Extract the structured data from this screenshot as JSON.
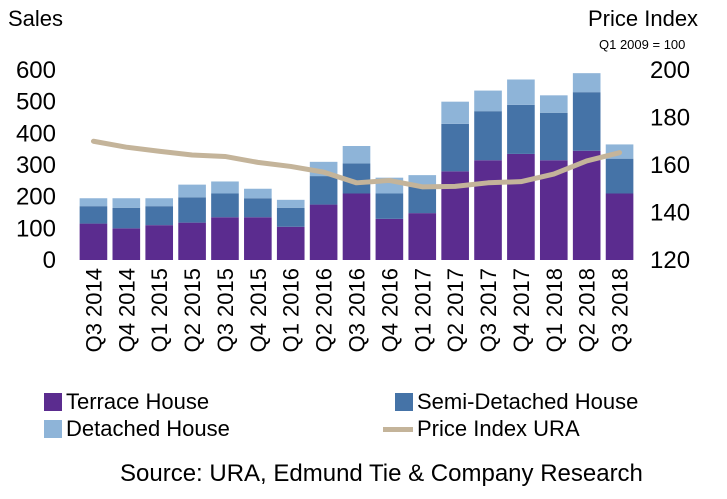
{
  "left_axis_title": "Sales",
  "right_axis_title": "Price Index",
  "right_axis_note": "Q1 2009 = 100",
  "source": "Source: URA, Edmund Tie & Company Research",
  "colors": {
    "terrace": "#5b2c8f",
    "semi": "#4573a7",
    "detached": "#8eb4d8",
    "price_line": "#c4b49a"
  },
  "chart_data": {
    "type": "bar",
    "stacked": true,
    "categories": [
      "Q3 2014",
      "Q4 2014",
      "Q1 2015",
      "Q2 2015",
      "Q3 2015",
      "Q4 2015",
      "Q1 2016",
      "Q2 2016",
      "Q3 2016",
      "Q4 2016",
      "Q1 2017",
      "Q2 2017",
      "Q3 2017",
      "Q4 2017",
      "Q1 2018",
      "Q2 2018",
      "Q3 2018"
    ],
    "series": [
      {
        "name": "Terrace House",
        "type": "bar",
        "axis": "left",
        "values": [
          115,
          100,
          110,
          118,
          135,
          135,
          105,
          175,
          210,
          130,
          148,
          280,
          315,
          335,
          315,
          345,
          210
        ]
      },
      {
        "name": "Semi-Detached House",
        "type": "bar",
        "axis": "left",
        "values": [
          55,
          65,
          60,
          80,
          75,
          60,
          60,
          90,
          95,
          80,
          85,
          150,
          155,
          155,
          150,
          185,
          110
        ]
      },
      {
        "name": "Detached House",
        "type": "bar",
        "axis": "left",
        "values": [
          25,
          30,
          25,
          40,
          38,
          30,
          25,
          45,
          55,
          50,
          35,
          70,
          65,
          80,
          55,
          60,
          45
        ]
      },
      {
        "name": "Price Index URA",
        "type": "line",
        "axis": "right",
        "values": [
          170,
          167.5,
          165.8,
          164.2,
          163.6,
          161.1,
          159.4,
          157,
          152.5,
          153.5,
          150.8,
          151,
          152.5,
          153,
          156.2,
          161.7,
          165.2
        ]
      }
    ],
    "left_axis": {
      "label": "Sales",
      "min": 0,
      "max": 600,
      "ticks": [
        0,
        100,
        200,
        300,
        400,
        500,
        600
      ]
    },
    "right_axis": {
      "label": "Price Index",
      "min": 120,
      "max": 200,
      "ticks": [
        120,
        140,
        160,
        180,
        200
      ]
    },
    "grid": false,
    "legend_position": "bottom"
  }
}
